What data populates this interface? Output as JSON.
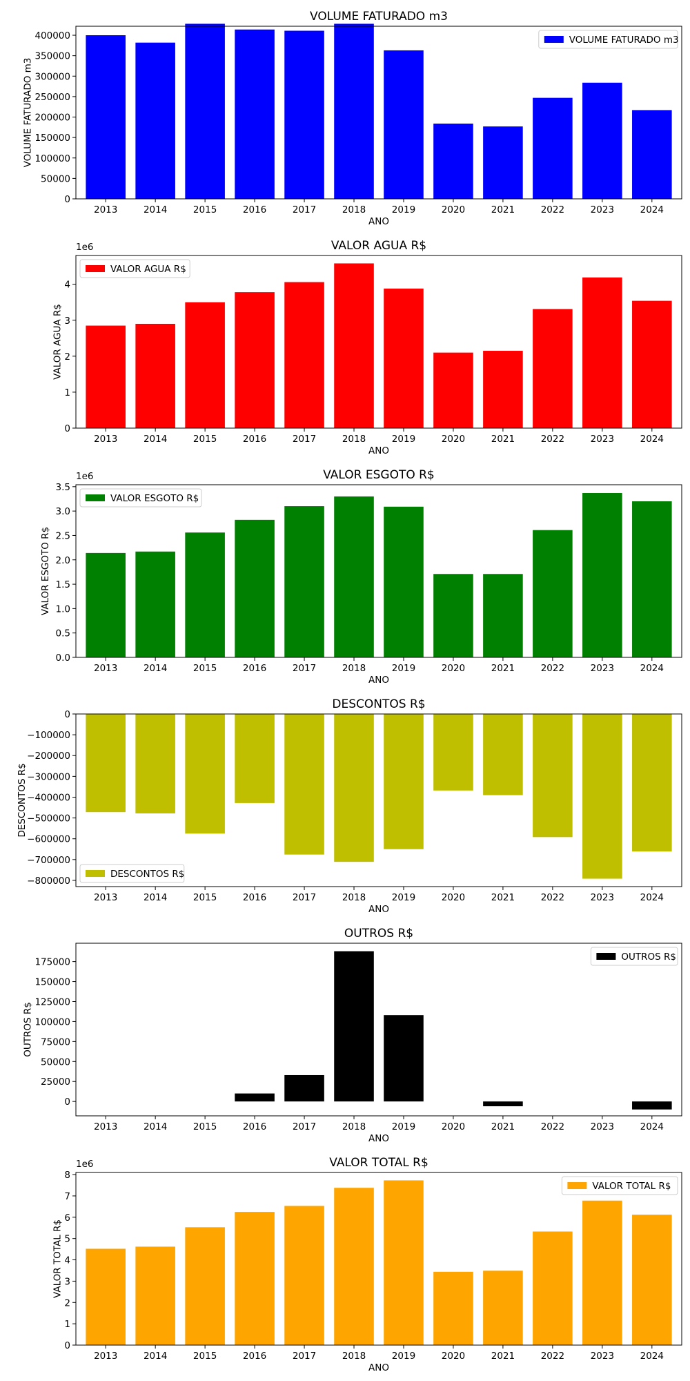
{
  "chart_data": [
    {
      "type": "bar",
      "title": "VOLUME FATURADO m3",
      "xlabel": "ANO",
      "ylabel": "VOLUME FATURADO m3",
      "categories": [
        "2013",
        "2014",
        "2015",
        "2016",
        "2017",
        "2018",
        "2019",
        "2020",
        "2021",
        "2022",
        "2023",
        "2024"
      ],
      "series": [
        {
          "name": "VOLUME FATURADO m3",
          "color": "#0000ff",
          "values": [
            400000,
            382000,
            428000,
            414000,
            411000,
            428000,
            363000,
            184000,
            177000,
            247000,
            284000,
            217000
          ]
        }
      ],
      "ylim": [
        0,
        422000
      ],
      "yticks": [
        0,
        50000,
        100000,
        150000,
        200000,
        250000,
        300000,
        350000,
        400000
      ],
      "tick_labels": [
        "0",
        "50000",
        "100000",
        "150000",
        "200000",
        "250000",
        "300000",
        "350000",
        "400000"
      ],
      "offset_label": "",
      "legend": "top-right",
      "grid": false
    },
    {
      "type": "bar",
      "title": "VALOR AGUA R$",
      "xlabel": "ANO",
      "ylabel": "VALOR AGUA R$",
      "categories": [
        "2013",
        "2014",
        "2015",
        "2016",
        "2017",
        "2018",
        "2019",
        "2020",
        "2021",
        "2022",
        "2023",
        "2024"
      ],
      "series": [
        {
          "name": "VALOR AGUA R$",
          "color": "#ff0000",
          "values": [
            2850000,
            2900000,
            3500000,
            3780000,
            4060000,
            4580000,
            3880000,
            2100000,
            2150000,
            3310000,
            4190000,
            3540000
          ]
        }
      ],
      "ylim": [
        0,
        4800000
      ],
      "yticks": [
        0,
        1000000,
        2000000,
        3000000,
        4000000
      ],
      "tick_labels": [
        "0",
        "1",
        "2",
        "3",
        "4"
      ],
      "offset_label": "1e6",
      "legend": "top-left",
      "grid": false
    },
    {
      "type": "bar",
      "title": "VALOR ESGOTO R$",
      "xlabel": "ANO",
      "ylabel": "VALOR ESGOTO R$",
      "categories": [
        "2013",
        "2014",
        "2015",
        "2016",
        "2017",
        "2018",
        "2019",
        "2020",
        "2021",
        "2022",
        "2023",
        "2024"
      ],
      "series": [
        {
          "name": "VALOR ESGOTO R$",
          "color": "#008000",
          "values": [
            2140000,
            2170000,
            2560000,
            2820000,
            3100000,
            3300000,
            3090000,
            1710000,
            1710000,
            2610000,
            3370000,
            3200000
          ]
        }
      ],
      "ylim": [
        0,
        3540000
      ],
      "yticks": [
        0,
        500000,
        1000000,
        1500000,
        2000000,
        2500000,
        3000000,
        3500000
      ],
      "tick_labels": [
        "0.0",
        "0.5",
        "1.0",
        "1.5",
        "2.0",
        "2.5",
        "3.0",
        "3.5"
      ],
      "offset_label": "1e6",
      "legend": "top-left",
      "grid": false
    },
    {
      "type": "bar",
      "title": "DESCONTOS R$",
      "xlabel": "ANO",
      "ylabel": "DESCONTOS R$",
      "categories": [
        "2013",
        "2014",
        "2015",
        "2016",
        "2017",
        "2018",
        "2019",
        "2020",
        "2021",
        "2022",
        "2023",
        "2024"
      ],
      "series": [
        {
          "name": "DESCONTOS R$",
          "color": "#bfbf00",
          "values": [
            -472000,
            -478000,
            -575000,
            -428000,
            -676000,
            -711000,
            -650000,
            -368000,
            -390000,
            -592000,
            -792000,
            -661000
          ]
        }
      ],
      "ylim": [
        -830000,
        0
      ],
      "yticks": [
        -800000,
        -700000,
        -600000,
        -500000,
        -400000,
        -300000,
        -200000,
        -100000,
        0
      ],
      "tick_labels": [
        "−800000",
        "−700000",
        "−600000",
        "−500000",
        "−400000",
        "−300000",
        "−200000",
        "−100000",
        "0"
      ],
      "offset_label": "",
      "legend": "bottom-left",
      "grid": false
    },
    {
      "type": "bar",
      "title": "OUTROS R$",
      "xlabel": "ANO",
      "ylabel": "OUTROS R$",
      "categories": [
        "2013",
        "2014",
        "2015",
        "2016",
        "2017",
        "2018",
        "2019",
        "2020",
        "2021",
        "2022",
        "2023",
        "2024"
      ],
      "series": [
        {
          "name": "OUTROS R$",
          "color": "#000000",
          "values": [
            0,
            0,
            0,
            10000,
            33000,
            188000,
            108000,
            0,
            -6000,
            0,
            0,
            -10000
          ]
        }
      ],
      "ylim": [
        -18000,
        198000
      ],
      "yticks": [
        0,
        25000,
        50000,
        75000,
        100000,
        125000,
        150000,
        175000
      ],
      "tick_labels": [
        "0",
        "25000",
        "50000",
        "75000",
        "100000",
        "125000",
        "150000",
        "175000"
      ],
      "offset_label": "",
      "legend": "top-right",
      "grid": false
    },
    {
      "type": "bar",
      "title": "VALOR TOTAL R$",
      "xlabel": "ANO",
      "ylabel": "VALOR TOTAL R$",
      "categories": [
        "2013",
        "2014",
        "2015",
        "2016",
        "2017",
        "2018",
        "2019",
        "2020",
        "2021",
        "2022",
        "2023",
        "2024"
      ],
      "series": [
        {
          "name": "VALOR TOTAL R$",
          "color": "#ffa500",
          "values": [
            4520000,
            4620000,
            5530000,
            6250000,
            6530000,
            7380000,
            7730000,
            3440000,
            3490000,
            5330000,
            6780000,
            6120000
          ]
        }
      ],
      "ylim": [
        0,
        8100000
      ],
      "yticks": [
        0,
        1000000,
        2000000,
        3000000,
        4000000,
        5000000,
        6000000,
        7000000,
        8000000
      ],
      "tick_labels": [
        "0",
        "1",
        "2",
        "3",
        "4",
        "5",
        "6",
        "7",
        "8"
      ],
      "offset_label": "1e6",
      "legend": "top-right",
      "grid": false
    }
  ]
}
